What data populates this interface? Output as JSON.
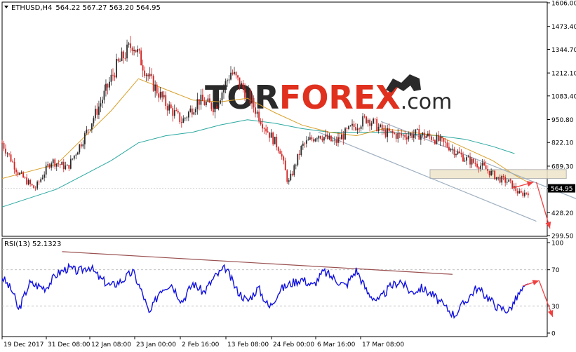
{
  "header": {
    "symbol": "ETHUSD,H4",
    "ohlc": "564.22 567.27 563.20 564.95",
    "rsi_label": "RSI(13) 52.1323"
  },
  "watermark": {
    "part1": "TOR",
    "part2": "FOREX",
    "part3": ".com"
  },
  "colors": {
    "candle_up": "#2a2a2a",
    "candle_down": "#d42020",
    "ma_fast": "#d8a02a",
    "ma_slow": "#2aa8a0",
    "channel": "#9fb0c0",
    "zone_fill": "#eee4c8",
    "zone_stroke": "#a8a8a8",
    "arrow": "#f04040",
    "rsi_line": "#1010e0",
    "rsi_trend": "#9a5050",
    "price_tag_bg": "#000000",
    "price_tag_text": "#ffffff",
    "brand_red": "#e0301e",
    "brand_dark": "#2a2a2a"
  },
  "chart_data": [
    {
      "type": "candlestick",
      "title": "ETHUSD,H4",
      "ylim": [
        299.5,
        1606.0
      ],
      "y_ticks": [
        "1606.00",
        "1473.40",
        "1344.70",
        "1212.10",
        "1083.40",
        "950.80",
        "822.10",
        "689.30",
        "564.95",
        "428.20",
        "299.50"
      ],
      "x_ticks": [
        "19 Dec 2017",
        "31 Dec 08:00",
        "12 Jan 08:00",
        "23 Jan 00:00",
        "2 Feb 16:00",
        "13 Feb 08:00",
        "24 Feb 00:00",
        "6 Mar 16:00",
        "17 Mar 08:00"
      ],
      "last_price": "564.95",
      "approx_close_path": [
        {
          "t": 0.0,
          "price": 820
        },
        {
          "t": 0.03,
          "price": 650
        },
        {
          "t": 0.06,
          "price": 560
        },
        {
          "t": 0.09,
          "price": 720
        },
        {
          "t": 0.12,
          "price": 680
        },
        {
          "t": 0.15,
          "price": 850
        },
        {
          "t": 0.18,
          "price": 1040
        },
        {
          "t": 0.21,
          "price": 1250
        },
        {
          "t": 0.24,
          "price": 1380
        },
        {
          "t": 0.27,
          "price": 1180
        },
        {
          "t": 0.3,
          "price": 1040
        },
        {
          "t": 0.33,
          "price": 940
        },
        {
          "t": 0.36,
          "price": 1060
        },
        {
          "t": 0.39,
          "price": 1020
        },
        {
          "t": 0.42,
          "price": 1220
        },
        {
          "t": 0.45,
          "price": 1090
        },
        {
          "t": 0.48,
          "price": 920
        },
        {
          "t": 0.51,
          "price": 780
        },
        {
          "t": 0.525,
          "price": 590
        },
        {
          "t": 0.55,
          "price": 800
        },
        {
          "t": 0.58,
          "price": 870
        },
        {
          "t": 0.61,
          "price": 820
        },
        {
          "t": 0.64,
          "price": 900
        },
        {
          "t": 0.67,
          "price": 960
        },
        {
          "t": 0.7,
          "price": 880
        },
        {
          "t": 0.73,
          "price": 860
        },
        {
          "t": 0.76,
          "price": 870
        },
        {
          "t": 0.79,
          "price": 850
        },
        {
          "t": 0.82,
          "price": 800
        },
        {
          "t": 0.85,
          "price": 730
        },
        {
          "t": 0.88,
          "price": 690
        },
        {
          "t": 0.91,
          "price": 620
        },
        {
          "t": 0.93,
          "price": 600
        },
        {
          "t": 0.95,
          "price": 530
        },
        {
          "t": 0.97,
          "price": 550
        },
        {
          "t": 1.0,
          "price": 565
        }
      ],
      "ma_fast_path": [
        {
          "t": 0.0,
          "price": 620
        },
        {
          "t": 0.1,
          "price": 700
        },
        {
          "t": 0.2,
          "price": 1000
        },
        {
          "t": 0.25,
          "price": 1180
        },
        {
          "t": 0.3,
          "price": 1120
        },
        {
          "t": 0.35,
          "price": 1060
        },
        {
          "t": 0.4,
          "price": 1050
        },
        {
          "t": 0.45,
          "price": 1070
        },
        {
          "t": 0.5,
          "price": 990
        },
        {
          "t": 0.55,
          "price": 920
        },
        {
          "t": 0.6,
          "price": 880
        },
        {
          "t": 0.65,
          "price": 860
        },
        {
          "t": 0.7,
          "price": 900
        },
        {
          "t": 0.75,
          "price": 880
        },
        {
          "t": 0.8,
          "price": 860
        },
        {
          "t": 0.85,
          "price": 790
        },
        {
          "t": 0.9,
          "price": 720
        },
        {
          "t": 0.94,
          "price": 640
        },
        {
          "t": 0.97,
          "price": 590
        }
      ],
      "ma_slow_path": [
        {
          "t": 0.0,
          "price": 460
        },
        {
          "t": 0.1,
          "price": 560
        },
        {
          "t": 0.2,
          "price": 720
        },
        {
          "t": 0.25,
          "price": 820
        },
        {
          "t": 0.3,
          "price": 860
        },
        {
          "t": 0.35,
          "price": 880
        },
        {
          "t": 0.4,
          "price": 920
        },
        {
          "t": 0.45,
          "price": 950
        },
        {
          "t": 0.5,
          "price": 930
        },
        {
          "t": 0.55,
          "price": 900
        },
        {
          "t": 0.6,
          "price": 880
        },
        {
          "t": 0.65,
          "price": 880
        },
        {
          "t": 0.7,
          "price": 880
        },
        {
          "t": 0.75,
          "price": 870
        },
        {
          "t": 0.8,
          "price": 860
        },
        {
          "t": 0.85,
          "price": 840
        },
        {
          "t": 0.9,
          "price": 800
        },
        {
          "t": 0.94,
          "price": 760
        }
      ],
      "resistance_zone": {
        "t_start": 0.785,
        "t_end": 1.035,
        "price_low": 620,
        "price_high": 670
      },
      "channel_upper": [
        {
          "t": 0.695,
          "price": 940
        },
        {
          "t": 1.075,
          "price": 480
        }
      ],
      "channel_lower": [
        {
          "t": 0.58,
          "price": 880
        },
        {
          "t": 0.98,
          "price": 380
        }
      ],
      "forecast_arrows": [
        {
          "from": {
            "t": 0.935,
            "price": 565
          },
          "to": {
            "t": 0.975,
            "price": 600
          }
        },
        {
          "from": {
            "t": 0.98,
            "price": 600
          },
          "to": {
            "t": 1.005,
            "price": 340
          }
        }
      ]
    },
    {
      "type": "line",
      "title": "RSI(13) 52.1323",
      "ylim": [
        0,
        100
      ],
      "y_ticks": [
        "100",
        "70",
        "30",
        "0"
      ],
      "last_value": 52.1323,
      "approx_values": [
        {
          "t": 0.0,
          "v": 62
        },
        {
          "t": 0.02,
          "v": 45
        },
        {
          "t": 0.03,
          "v": 25
        },
        {
          "t": 0.05,
          "v": 55
        },
        {
          "t": 0.08,
          "v": 50
        },
        {
          "t": 0.1,
          "v": 65
        },
        {
          "t": 0.12,
          "v": 72
        },
        {
          "t": 0.14,
          "v": 68
        },
        {
          "t": 0.16,
          "v": 74
        },
        {
          "t": 0.18,
          "v": 60
        },
        {
          "t": 0.2,
          "v": 52
        },
        {
          "t": 0.22,
          "v": 58
        },
        {
          "t": 0.24,
          "v": 68
        },
        {
          "t": 0.26,
          "v": 40
        },
        {
          "t": 0.27,
          "v": 20
        },
        {
          "t": 0.29,
          "v": 48
        },
        {
          "t": 0.31,
          "v": 55
        },
        {
          "t": 0.33,
          "v": 35
        },
        {
          "t": 0.35,
          "v": 55
        },
        {
          "t": 0.37,
          "v": 45
        },
        {
          "t": 0.39,
          "v": 62
        },
        {
          "t": 0.41,
          "v": 72
        },
        {
          "t": 0.43,
          "v": 48
        },
        {
          "t": 0.45,
          "v": 35
        },
        {
          "t": 0.47,
          "v": 50
        },
        {
          "t": 0.49,
          "v": 28
        },
        {
          "t": 0.51,
          "v": 48
        },
        {
          "t": 0.53,
          "v": 55
        },
        {
          "t": 0.55,
          "v": 60
        },
        {
          "t": 0.57,
          "v": 52
        },
        {
          "t": 0.59,
          "v": 68
        },
        {
          "t": 0.61,
          "v": 60
        },
        {
          "t": 0.63,
          "v": 52
        },
        {
          "t": 0.65,
          "v": 70
        },
        {
          "t": 0.67,
          "v": 45
        },
        {
          "t": 0.69,
          "v": 35
        },
        {
          "t": 0.71,
          "v": 50
        },
        {
          "t": 0.73,
          "v": 58
        },
        {
          "t": 0.75,
          "v": 45
        },
        {
          "t": 0.77,
          "v": 50
        },
        {
          "t": 0.79,
          "v": 42
        },
        {
          "t": 0.81,
          "v": 30
        },
        {
          "t": 0.83,
          "v": 20
        },
        {
          "t": 0.85,
          "v": 35
        },
        {
          "t": 0.87,
          "v": 50
        },
        {
          "t": 0.89,
          "v": 40
        },
        {
          "t": 0.91,
          "v": 28
        },
        {
          "t": 0.93,
          "v": 25
        },
        {
          "t": 0.95,
          "v": 45
        },
        {
          "t": 0.97,
          "v": 55
        },
        {
          "t": 1.0,
          "v": 52
        }
      ],
      "trendline": [
        {
          "t": 0.11,
          "v": 90
        },
        {
          "t": 1.11,
          "v": 55
        }
      ],
      "forecast_arrows": [
        {
          "from": {
            "t": 0.955,
            "v": 52
          },
          "to": {
            "t": 0.985,
            "v": 58
          }
        },
        {
          "from": {
            "t": 0.985,
            "v": 58
          },
          "to": {
            "t": 1.01,
            "v": 18
          }
        }
      ]
    }
  ]
}
